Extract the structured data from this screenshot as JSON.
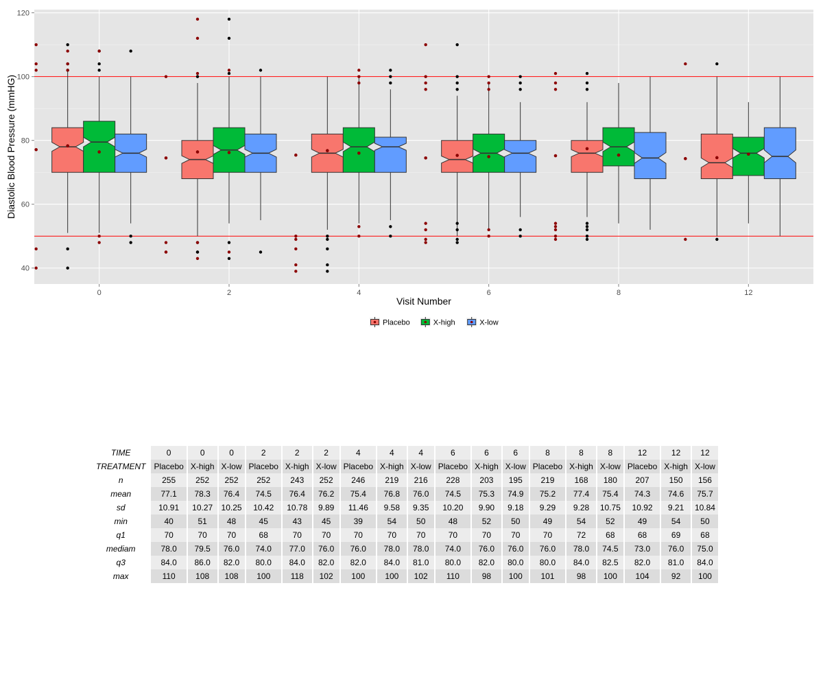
{
  "chart_data": {
    "type": "boxplot",
    "title": "",
    "xlabel": "Visit Number",
    "ylabel": "Diastolic Blood Pressure (mmHG)",
    "ylim": [
      35,
      121
    ],
    "yticks": [
      40,
      60,
      80,
      100,
      120
    ],
    "categories": [
      "0",
      "2",
      "4",
      "6",
      "8",
      "12"
    ],
    "reference_lines": [
      100,
      50
    ],
    "reference_line_color": "#ff0000",
    "legend_position": "bottom",
    "notched": true,
    "series": [
      {
        "name": "Placebo",
        "color": "#f8766d",
        "boxes": [
          {
            "q1": 70,
            "median": 78,
            "q3": 84,
            "whisker_low": 51,
            "whisker_high": 102,
            "mean": 77.1,
            "notch": [
              76.6,
              79.4
            ],
            "outliers": [
              110,
              104,
              102,
              46,
              40
            ]
          },
          {
            "q1": 68,
            "median": 74,
            "q3": 80,
            "whisker_low": 50,
            "whisker_high": 98,
            "mean": 74.5,
            "notch": [
              72.8,
              75.2
            ],
            "outliers": [
              100,
              48,
              45,
              45
            ]
          },
          {
            "q1": 70,
            "median": 76,
            "q3": 82,
            "whisker_low": 52,
            "whisker_high": 100,
            "mean": 75.4,
            "notch": [
              74.8,
              77.2
            ],
            "outliers": [
              50,
              49,
              46,
              41,
              39
            ]
          },
          {
            "q1": 70,
            "median": 74,
            "q3": 80,
            "whisker_low": 50,
            "whisker_high": 94,
            "mean": 74.5,
            "notch": [
              72.9,
              75.1
            ],
            "outliers": [
              110,
              100,
              98,
              96,
              54,
              52,
              49,
              48
            ]
          },
          {
            "q1": 70,
            "median": 76,
            "q3": 80,
            "whisker_low": 56,
            "whisker_high": 92,
            "mean": 75.2,
            "notch": [
              74.9,
              77.1
            ],
            "outliers": [
              101,
              98,
              96,
              54,
              53,
              52,
              50,
              49
            ]
          },
          {
            "q1": 68,
            "median": 73,
            "q3": 82,
            "whisker_low": 50,
            "whisker_high": 100,
            "mean": 74.3,
            "notch": [
              71.5,
              74.5
            ],
            "outliers": [
              104,
              49
            ]
          }
        ]
      },
      {
        "name": "X-high",
        "color": "#00ba38",
        "boxes": [
          {
            "q1": 70,
            "median": 79.5,
            "q3": 86,
            "whisker_low": 51,
            "whisker_high": 100,
            "mean": 78.3,
            "notch": [
              78.0,
              81.0
            ],
            "outliers": [
              108,
              104,
              102
            ]
          },
          {
            "q1": 70,
            "median": 77,
            "q3": 84,
            "whisker_low": 54,
            "whisker_high": 100,
            "mean": 76.4,
            "notch": [
              75.6,
              78.4
            ],
            "outliers": [
              118,
              112,
              101,
              48,
              43
            ]
          },
          {
            "q1": 70,
            "median": 78,
            "q3": 84,
            "whisker_low": 54,
            "whisker_high": 100,
            "mean": 76.8,
            "notch": [
              76.5,
              79.5
            ],
            "outliers": []
          },
          {
            "q1": 70,
            "median": 76,
            "q3": 82,
            "whisker_low": 52,
            "whisker_high": 98,
            "mean": 75.3,
            "notch": [
              74.7,
              77.3
            ],
            "outliers": []
          },
          {
            "q1": 72,
            "median": 78,
            "q3": 84,
            "whisker_low": 54,
            "whisker_high": 98,
            "mean": 77.4,
            "notch": [
              76.5,
              79.5
            ],
            "outliers": []
          },
          {
            "q1": 69,
            "median": 76,
            "q3": 81,
            "whisker_low": 54,
            "whisker_high": 92,
            "mean": 74.6,
            "notch": [
              74.5,
              77.5
            ],
            "outliers": []
          }
        ]
      },
      {
        "name": "X-low",
        "color": "#619cff",
        "boxes": [
          {
            "q1": 70,
            "median": 76,
            "q3": 82,
            "whisker_low": 54,
            "whisker_high": 100,
            "mean": 76.4,
            "notch": [
              74.8,
              77.2
            ],
            "outliers": [
              108,
              50,
              48
            ]
          },
          {
            "q1": 70,
            "median": 76,
            "q3": 82,
            "whisker_low": 55,
            "whisker_high": 100,
            "mean": 76.2,
            "notch": [
              74.8,
              77.2
            ],
            "outliers": [
              102,
              45
            ]
          },
          {
            "q1": 70,
            "median": 78,
            "q3": 81,
            "whisker_low": 55,
            "whisker_high": 96,
            "mean": 76.0,
            "notch": [
              76.9,
              79.1
            ],
            "outliers": [
              102,
              100,
              98,
              53,
              50
            ]
          },
          {
            "q1": 70,
            "median": 76,
            "q3": 80,
            "whisker_low": 56,
            "whisker_high": 92,
            "mean": 74.9,
            "notch": [
              74.9,
              77.1
            ],
            "outliers": [
              100,
              98,
              96,
              52,
              50
            ]
          },
          {
            "q1": 68,
            "median": 74.5,
            "q3": 82.5,
            "whisker_low": 52,
            "whisker_high": 100,
            "mean": 75.4,
            "notch": [
              72.8,
              76.2
            ],
            "outliers": []
          },
          {
            "q1": 68,
            "median": 75,
            "q3": 84,
            "whisker_low": 50,
            "whisker_high": 100,
            "mean": 75.7,
            "notch": [
              73.0,
              77.0
            ],
            "outliers": []
          }
        ]
      }
    ]
  },
  "table": {
    "row_labels": [
      "TIME",
      "TREATMENT",
      "n",
      "mean",
      "sd",
      "min",
      "q1",
      "mediam",
      "q3",
      "max"
    ],
    "columns": [
      [
        "0",
        "Placebo",
        "255",
        "77.1",
        "10.91",
        "40",
        "70",
        "78.0",
        "84.0",
        "110"
      ],
      [
        "0",
        "X-high",
        "252",
        "78.3",
        "10.27",
        "51",
        "70",
        "79.5",
        "86.0",
        "108"
      ],
      [
        "0",
        "X-low",
        "252",
        "76.4",
        "10.25",
        "48",
        "70",
        "76.0",
        "82.0",
        "108"
      ],
      [
        "2",
        "Placebo",
        "252",
        "74.5",
        "10.42",
        "45",
        "68",
        "74.0",
        "80.0",
        "100"
      ],
      [
        "2",
        "X-high",
        "243",
        "76.4",
        "10.78",
        "43",
        "70",
        "77.0",
        "84.0",
        "118"
      ],
      [
        "2",
        "X-low",
        "252",
        "76.2",
        "9.89",
        "45",
        "70",
        "76.0",
        "82.0",
        "102"
      ],
      [
        "4",
        "Placebo",
        "246",
        "75.4",
        "11.46",
        "39",
        "70",
        "76.0",
        "82.0",
        "100"
      ],
      [
        "4",
        "X-high",
        "219",
        "76.8",
        "9.58",
        "54",
        "70",
        "78.0",
        "84.0",
        "100"
      ],
      [
        "4",
        "X-low",
        "216",
        "76.0",
        "9.35",
        "50",
        "70",
        "78.0",
        "81.0",
        "102"
      ],
      [
        "6",
        "Placebo",
        "228",
        "74.5",
        "10.20",
        "48",
        "70",
        "74.0",
        "80.0",
        "110"
      ],
      [
        "6",
        "X-high",
        "203",
        "75.3",
        "9.90",
        "52",
        "70",
        "76.0",
        "82.0",
        "98"
      ],
      [
        "6",
        "X-low",
        "195",
        "74.9",
        "9.18",
        "50",
        "70",
        "76.0",
        "80.0",
        "100"
      ],
      [
        "8",
        "Placebo",
        "219",
        "75.2",
        "9.29",
        "49",
        "70",
        "76.0",
        "80.0",
        "101"
      ],
      [
        "8",
        "X-high",
        "168",
        "77.4",
        "9.28",
        "54",
        "72",
        "78.0",
        "84.0",
        "98"
      ],
      [
        "8",
        "X-low",
        "180",
        "75.4",
        "10.75",
        "52",
        "68",
        "74.5",
        "82.5",
        "100"
      ],
      [
        "12",
        "Placebo",
        "207",
        "74.3",
        "10.92",
        "49",
        "68",
        "73.0",
        "82.0",
        "104"
      ],
      [
        "12",
        "X-high",
        "150",
        "74.6",
        "9.21",
        "54",
        "69",
        "76.0",
        "81.0",
        "92"
      ],
      [
        "12",
        "X-low",
        "156",
        "75.7",
        "10.84",
        "50",
        "68",
        "75.0",
        "84.0",
        "100"
      ]
    ]
  }
}
